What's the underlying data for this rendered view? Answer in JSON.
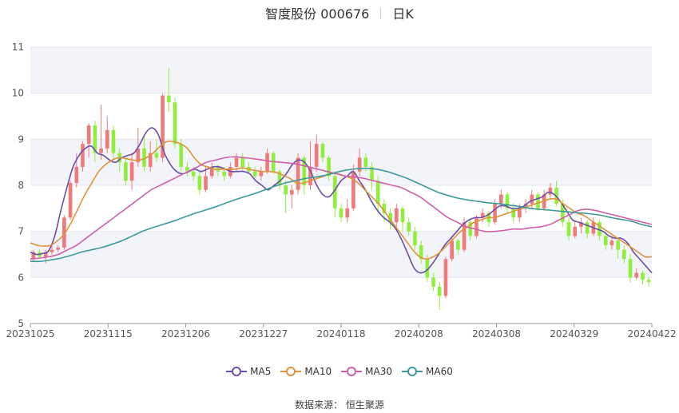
{
  "title": {
    "name": "智度股份 000676",
    "period": "日K"
  },
  "source": {
    "label": "数据来源：",
    "value": "恒生聚源"
  },
  "colors": {
    "up": "#f07a7a",
    "down": "#90ee3c",
    "ma5": "#6b4fa8",
    "ma10": "#e0943a",
    "ma30": "#d060a8",
    "ma60": "#3d9a9a"
  },
  "chart_data": {
    "type": "candlestick",
    "ylim": [
      5,
      11
    ],
    "yticks": [
      "5",
      "6",
      "7",
      "8",
      "9",
      "10",
      "11"
    ],
    "xticks": [
      "20231025",
      "20231115",
      "20231206",
      "20231227",
      "20240118",
      "20240208",
      "20240308",
      "20240329",
      "20240422"
    ],
    "legend": [
      {
        "name": "MA5",
        "key": "ma5"
      },
      {
        "name": "MA10",
        "key": "ma10"
      },
      {
        "name": "MA30",
        "key": "ma30"
      },
      {
        "name": "MA60",
        "key": "ma60"
      }
    ],
    "candles": [
      [
        6.4,
        6.55,
        6.35,
        6.6
      ],
      [
        6.55,
        6.45,
        6.4,
        6.62
      ],
      [
        6.45,
        6.55,
        6.3,
        6.6
      ],
      [
        6.55,
        6.6,
        6.5,
        6.7
      ],
      [
        6.6,
        6.65,
        6.55,
        6.7
      ],
      [
        6.65,
        7.3,
        6.6,
        7.35
      ],
      [
        7.3,
        8.05,
        7.25,
        8.1
      ],
      [
        8.05,
        8.4,
        7.95,
        8.7
      ],
      [
        8.4,
        8.9,
        8.3,
        8.95
      ],
      [
        8.9,
        9.3,
        8.6,
        9.35
      ],
      [
        9.3,
        8.7,
        8.5,
        9.4
      ],
      [
        8.7,
        8.8,
        8.55,
        9.75
      ],
      [
        8.8,
        9.2,
        8.7,
        9.5
      ],
      [
        9.2,
        8.7,
        8.55,
        9.3
      ],
      [
        8.7,
        8.5,
        8.3,
        8.8
      ],
      [
        8.5,
        8.1,
        8.0,
        8.6
      ],
      [
        8.1,
        8.5,
        7.9,
        8.7
      ],
      [
        8.5,
        8.8,
        8.4,
        9.25
      ],
      [
        8.8,
        8.4,
        8.3,
        9.1
      ],
      [
        8.4,
        8.7,
        8.3,
        8.95
      ],
      [
        8.7,
        8.6,
        8.5,
        9.0
      ],
      [
        8.6,
        9.95,
        8.5,
        10.0
      ],
      [
        9.95,
        9.8,
        9.6,
        10.55
      ],
      [
        9.8,
        8.9,
        8.8,
        9.9
      ],
      [
        8.9,
        8.4,
        8.3,
        9.0
      ],
      [
        8.4,
        8.3,
        8.2,
        8.5
      ],
      [
        8.3,
        8.2,
        8.1,
        8.4
      ],
      [
        8.2,
        7.9,
        7.8,
        8.3
      ],
      [
        7.9,
        8.2,
        7.85,
        8.4
      ],
      [
        8.2,
        8.4,
        8.15,
        8.5
      ],
      [
        8.4,
        8.3,
        8.2,
        8.45
      ],
      [
        8.3,
        8.2,
        8.1,
        8.4
      ],
      [
        8.2,
        8.4,
        8.15,
        8.5
      ],
      [
        8.4,
        8.6,
        8.3,
        8.7
      ],
      [
        8.6,
        8.4,
        8.3,
        8.7
      ],
      [
        8.4,
        8.3,
        8.25,
        8.5
      ],
      [
        8.3,
        8.2,
        8.15,
        8.4
      ],
      [
        8.2,
        8.3,
        8.1,
        8.4
      ],
      [
        8.3,
        8.7,
        8.25,
        8.8
      ],
      [
        8.7,
        8.3,
        8.25,
        8.75
      ],
      [
        8.3,
        8.0,
        7.9,
        8.35
      ],
      [
        8.0,
        7.8,
        7.4,
        8.1
      ],
      [
        7.8,
        7.9,
        7.5,
        8.0
      ],
      [
        7.9,
        8.6,
        7.8,
        8.7
      ],
      [
        8.6,
        8.0,
        7.8,
        8.65
      ],
      [
        8.0,
        8.4,
        7.9,
        8.95
      ],
      [
        8.4,
        8.9,
        8.3,
        9.1
      ],
      [
        8.9,
        8.6,
        8.5,
        8.95
      ],
      [
        8.6,
        8.2,
        8.1,
        8.65
      ],
      [
        8.2,
        7.5,
        7.3,
        8.3
      ],
      [
        7.5,
        7.3,
        7.2,
        7.6
      ],
      [
        7.3,
        7.5,
        7.2,
        7.7
      ],
      [
        7.5,
        8.3,
        7.45,
        8.45
      ],
      [
        8.3,
        8.6,
        8.2,
        8.8
      ],
      [
        8.6,
        8.4,
        8.3,
        8.7
      ],
      [
        8.4,
        8.1,
        7.9,
        8.5
      ],
      [
        8.1,
        7.6,
        7.4,
        8.2
      ],
      [
        7.6,
        7.4,
        7.2,
        7.7
      ],
      [
        7.4,
        7.2,
        7.05,
        7.5
      ],
      [
        7.2,
        7.5,
        7.1,
        7.6
      ],
      [
        7.5,
        7.2,
        7.0,
        7.55
      ],
      [
        7.2,
        7.0,
        6.9,
        7.3
      ],
      [
        7.0,
        6.7,
        6.6,
        7.1
      ],
      [
        6.7,
        6.4,
        6.3,
        6.8
      ],
      [
        6.4,
        6.0,
        5.9,
        6.5
      ],
      [
        6.0,
        5.8,
        5.7,
        6.1
      ],
      [
        5.8,
        5.6,
        5.3,
        5.9
      ],
      [
        5.6,
        6.4,
        5.55,
        6.45
      ],
      [
        6.4,
        6.8,
        6.35,
        6.9
      ],
      [
        6.8,
        6.6,
        6.5,
        6.85
      ],
      [
        6.6,
        7.2,
        6.55,
        7.3
      ],
      [
        7.2,
        6.9,
        6.8,
        7.25
      ],
      [
        6.9,
        7.3,
        6.85,
        7.35
      ],
      [
        7.3,
        7.4,
        7.2,
        7.5
      ],
      [
        7.4,
        7.2,
        7.1,
        7.45
      ],
      [
        7.2,
        7.6,
        7.15,
        7.7
      ],
      [
        7.6,
        7.8,
        7.5,
        7.9
      ],
      [
        7.8,
        7.5,
        7.4,
        7.85
      ],
      [
        7.5,
        7.3,
        7.2,
        7.6
      ],
      [
        7.3,
        7.5,
        7.2,
        7.6
      ],
      [
        7.5,
        7.6,
        7.4,
        7.7
      ],
      [
        7.6,
        7.8,
        7.5,
        7.9
      ],
      [
        7.8,
        7.5,
        7.45,
        7.85
      ],
      [
        7.5,
        7.8,
        7.45,
        7.9
      ],
      [
        7.8,
        7.95,
        7.7,
        8.05
      ],
      [
        7.95,
        7.6,
        7.55,
        8.1
      ],
      [
        7.6,
        7.2,
        7.1,
        7.7
      ],
      [
        7.2,
        6.9,
        6.8,
        7.3
      ],
      [
        6.9,
        7.1,
        6.85,
        7.2
      ],
      [
        7.1,
        7.2,
        6.95,
        7.3
      ],
      [
        7.2,
        6.95,
        6.85,
        7.25
      ],
      [
        6.95,
        7.2,
        6.9,
        7.3
      ],
      [
        7.2,
        6.9,
        6.8,
        7.25
      ],
      [
        6.9,
        6.7,
        6.6,
        7.0
      ],
      [
        6.7,
        6.8,
        6.6,
        6.9
      ],
      [
        6.8,
        6.6,
        6.4,
        6.85
      ],
      [
        6.6,
        6.4,
        6.3,
        6.7
      ],
      [
        6.4,
        6.0,
        5.9,
        6.5
      ],
      [
        6.0,
        6.1,
        5.95,
        6.2
      ],
      [
        6.1,
        5.95,
        5.85,
        6.15
      ],
      [
        5.95,
        5.9,
        5.8,
        6.0
      ]
    ],
    "ma5": [
      6.55,
      6.5,
      6.52,
      6.58,
      6.9,
      7.45,
      7.95,
      8.4,
      8.65,
      8.8,
      8.85,
      8.7,
      8.65,
      8.55,
      8.5,
      8.6,
      8.65,
      8.7,
      8.9,
      9.15,
      9.25,
      9.1,
      8.7,
      8.45,
      8.3,
      8.25,
      8.3,
      8.35,
      8.3,
      8.35,
      8.4,
      8.4,
      8.35,
      8.3,
      8.3,
      8.3,
      8.25,
      8.1,
      8.0,
      7.9,
      8.0,
      8.1,
      8.25,
      8.45,
      8.55,
      8.5,
      8.3,
      8.0,
      7.8,
      7.75,
      7.9,
      8.1,
      8.2,
      8.3,
      8.1,
      7.9,
      7.65,
      7.45,
      7.3,
      7.2,
      7.05,
      6.8,
      6.5,
      6.2,
      6.1,
      6.15,
      6.3,
      6.5,
      6.7,
      6.85,
      7.0,
      7.15,
      7.25,
      7.3,
      7.3,
      7.35,
      7.45,
      7.55,
      7.55,
      7.5,
      7.5,
      7.55,
      7.65,
      7.7,
      7.75,
      7.85,
      7.8,
      7.65,
      7.45,
      7.25,
      7.2,
      7.15,
      7.1,
      7.05,
      7.0,
      6.9,
      6.85,
      6.85,
      6.75,
      6.55,
      6.4,
      6.25,
      6.1
    ],
    "ma10": [
      6.75,
      6.7,
      6.68,
      6.7,
      6.8,
      6.95,
      7.2,
      7.5,
      7.8,
      8.05,
      8.3,
      8.45,
      8.55,
      8.6,
      8.58,
      8.55,
      8.55,
      8.6,
      8.7,
      8.85,
      8.95,
      8.95,
      8.9,
      8.8,
      8.6,
      8.45,
      8.4,
      8.35,
      8.35,
      8.35,
      8.35,
      8.38,
      8.35,
      8.32,
      8.3,
      8.3,
      8.28,
      8.22,
      8.15,
      8.05,
      8.05,
      8.1,
      8.15,
      8.2,
      8.25,
      8.25,
      8.2,
      8.15,
      8.05,
      7.9,
      7.75,
      7.6,
      7.4,
      7.2,
      7.0,
      6.8,
      6.6,
      6.45,
      6.4,
      6.45,
      6.55,
      6.7,
      6.85,
      7.0,
      7.1,
      7.2,
      7.25,
      7.3,
      7.3,
      7.35,
      7.4,
      7.45,
      7.5,
      7.55,
      7.6,
      7.65,
      7.7,
      7.7,
      7.6,
      7.5,
      7.4,
      7.35,
      7.25,
      7.15,
      7.05,
      6.95,
      6.85,
      6.75,
      6.65,
      6.55,
      6.45,
      6.45
    ],
    "ma30": [
      6.4,
      6.42,
      6.45,
      6.5,
      6.6,
      6.7,
      6.85,
      7.0,
      7.15,
      7.3,
      7.45,
      7.6,
      7.75,
      7.9,
      8.0,
      8.1,
      8.2,
      8.3,
      8.4,
      8.5,
      8.55,
      8.6,
      8.62,
      8.6,
      8.58,
      8.55,
      8.52,
      8.5,
      8.48,
      8.45,
      8.4,
      8.35,
      8.3,
      8.25,
      8.2,
      8.18,
      8.15,
      8.1,
      8.05,
      8.0,
      7.95,
      7.85,
      7.75,
      7.6,
      7.45,
      7.3,
      7.2,
      7.1,
      7.05,
      7.0,
      7.0,
      7.02,
      7.05,
      7.05,
      7.08,
      7.1,
      7.15,
      7.25,
      7.35,
      7.45,
      7.48,
      7.45,
      7.4,
      7.35,
      7.3,
      7.25,
      7.2,
      7.15
    ],
    "ma60": [
      6.35,
      6.35,
      6.38,
      6.42,
      6.48,
      6.55,
      6.6,
      6.65,
      6.72,
      6.8,
      6.9,
      7.0,
      7.08,
      7.15,
      7.22,
      7.3,
      7.38,
      7.45,
      7.52,
      7.6,
      7.68,
      7.75,
      7.82,
      7.9,
      7.98,
      8.05,
      8.1,
      8.15,
      8.18,
      8.22,
      8.28,
      8.33,
      8.36,
      8.37,
      8.35,
      8.3,
      8.23,
      8.15,
      8.05,
      7.95,
      7.85,
      7.78,
      7.72,
      7.68,
      7.65,
      7.62,
      7.6,
      7.57,
      7.54,
      7.5,
      7.48,
      7.46,
      7.44,
      7.42,
      7.4,
      7.38,
      7.35,
      7.3,
      7.26,
      7.22,
      7.15,
      7.1
    ]
  }
}
